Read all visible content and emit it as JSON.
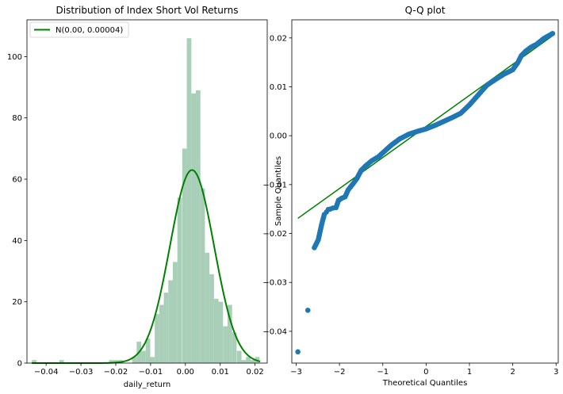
{
  "chart_data": [
    {
      "type": "bar",
      "title": "Distribution of Index Short Vol Returns",
      "xlabel": "daily_return",
      "ylabel": "",
      "xlim": [
        -0.0455,
        0.0235
      ],
      "ylim": [
        0,
        112
      ],
      "xticks": [
        -0.04,
        -0.03,
        -0.02,
        -0.01,
        0.0,
        0.01,
        0.02
      ],
      "xtick_labels": [
        "−0.04",
        "−0.03",
        "−0.02",
        "−0.01",
        "0.00",
        "0.01",
        "0.02"
      ],
      "yticks": [
        0,
        20,
        40,
        60,
        80,
        100
      ],
      "ytick_labels": [
        "0",
        "20",
        "40",
        "60",
        "80",
        "100"
      ],
      "hist_color": "#a9cfb9",
      "histogram": {
        "bin_width": 0.00131,
        "bin_starts": [
          -0.0441,
          -0.0362,
          -0.0219,
          -0.0206,
          -0.0193,
          -0.0153,
          -0.014,
          -0.0127,
          -0.0114,
          -0.0101,
          -0.0088,
          -0.0075,
          -0.0062,
          -0.0049,
          -0.0036,
          -0.0023,
          -0.0009,
          0.0004,
          0.0017,
          0.003,
          0.0043,
          0.0056,
          0.0069,
          0.0082,
          0.0095,
          0.0108,
          0.0121,
          0.0134,
          0.0148,
          0.0161,
          0.0174,
          0.0187,
          0.02
        ],
        "counts": [
          1,
          1,
          1,
          1,
          1,
          2,
          7,
          4,
          8,
          2,
          16,
          19,
          23,
          27,
          33,
          54,
          70,
          106,
          88,
          89,
          57,
          36,
          29,
          21,
          20,
          12,
          19,
          10,
          4,
          1,
          2,
          1,
          2
        ]
      },
      "series": [
        {
          "name": "N(0.00, 0.00004)",
          "type": "line",
          "color": "#008000",
          "mean": 0.0019,
          "std": 0.00634,
          "peak": 63,
          "xrange": [
            -0.0441,
            0.0215
          ]
        }
      ],
      "legend": "top-left"
    },
    {
      "type": "scatter",
      "title": "Q-Q plot",
      "xlabel": "Theoretical Quantiles",
      "ylabel": "Sample Quantiles",
      "xlim": [
        -3.1,
        3.05
      ],
      "ylim": [
        -0.0465,
        0.0237
      ],
      "xticks": [
        -3,
        -2,
        -1,
        0,
        1,
        2,
        3
      ],
      "xtick_labels": [
        "−3",
        "−2",
        "−1",
        "0",
        "1",
        "2",
        "3"
      ],
      "yticks": [
        -0.04,
        -0.03,
        -0.02,
        -0.01,
        0.0,
        0.01,
        0.02
      ],
      "ytick_labels": [
        "−0.04",
        "−0.03",
        "−0.02",
        "−0.01",
        "0.00",
        "0.01",
        "0.02"
      ],
      "point_color": "#1f77b4",
      "line_color": "#008000",
      "reference_line": {
        "x": [
          -2.96,
          2.96
        ],
        "y": [
          -0.0169,
          0.0207
        ]
      },
      "points": {
        "x": [
          -2.96,
          -2.73,
          -2.58,
          -2.49,
          -2.41,
          -2.35,
          -2.3,
          -2.26,
          -2.21,
          -2.15,
          -2.08,
          -2.02,
          -1.95,
          -1.87,
          -1.8,
          -1.72,
          -1.6,
          -1.5,
          -1.4,
          -1.25,
          -1.1,
          -0.95,
          -0.8,
          -0.6,
          -0.4,
          -0.2,
          0.0,
          0.2,
          0.4,
          0.6,
          0.8,
          1.0,
          1.2,
          1.4,
          1.6,
          1.8,
          2.0,
          2.12,
          2.2,
          2.3,
          2.42,
          2.55,
          2.72,
          2.92
        ],
        "y": [
          -0.0442,
          -0.0357,
          -0.0229,
          -0.0213,
          -0.0181,
          -0.0161,
          -0.0156,
          -0.0151,
          -0.015,
          -0.0148,
          -0.0147,
          -0.0132,
          -0.0128,
          -0.0125,
          -0.0111,
          -0.0102,
          -0.0088,
          -0.0071,
          -0.0062,
          -0.0051,
          -0.0043,
          -0.0031,
          -0.0019,
          -0.0006,
          0.0003,
          0.0009,
          0.0014,
          0.0021,
          0.0029,
          0.0037,
          0.0046,
          0.0063,
          0.0083,
          0.0103,
          0.0115,
          0.0126,
          0.0135,
          0.015,
          0.0164,
          0.0173,
          0.0181,
          0.0187,
          0.0199,
          0.0209
        ]
      }
    }
  ]
}
